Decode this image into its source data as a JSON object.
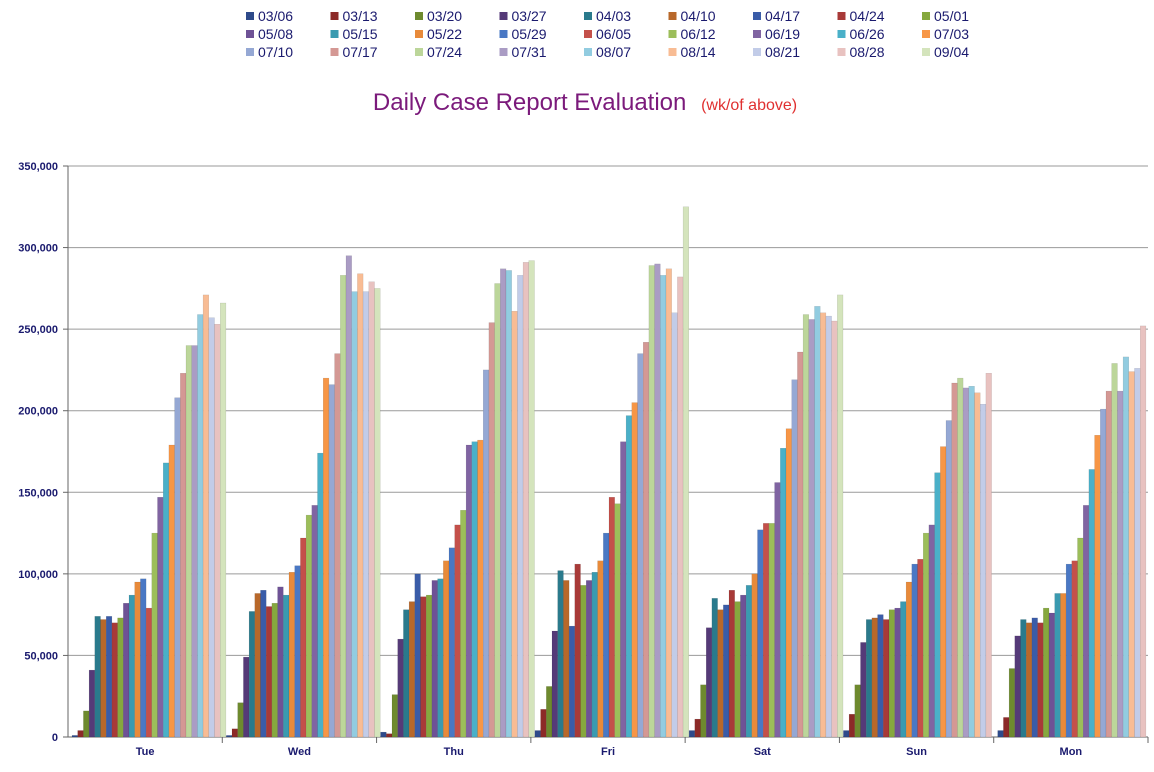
{
  "chart_data": {
    "type": "bar",
    "title": "Daily Case Report Evaluation",
    "subtitle": "(wk/of above)",
    "xlabel": "",
    "ylabel": "",
    "ylim": [
      0,
      350000
    ],
    "yticks": [
      "0",
      "50,000",
      "100,000",
      "150,000",
      "200,000",
      "250,000",
      "300,000",
      "350,000"
    ],
    "grid": true,
    "legend_position": "top",
    "colors": {
      "title": "#7b1a7b",
      "subtitle": "#e03030",
      "legend_text": "#1a1a6e",
      "tick_text": "#1a1a6e",
      "gridline": "#9a9a9a"
    },
    "categories": [
      "Tue",
      "Wed",
      "Thu",
      "Fri",
      "Sat",
      "Sun",
      "Mon"
    ],
    "series": [
      {
        "name": "03/06",
        "color": "#2e4a8a",
        "values": [
          1000,
          1000,
          3000,
          4000,
          4000,
          4000,
          4000
        ]
      },
      {
        "name": "03/13",
        "color": "#8c2a28",
        "values": [
          4000,
          5000,
          2000,
          17000,
          11000,
          14000,
          12000
        ]
      },
      {
        "name": "03/20",
        "color": "#6e8a2e",
        "values": [
          16000,
          21000,
          26000,
          31000,
          32000,
          32000,
          42000
        ]
      },
      {
        "name": "03/27",
        "color": "#553a78",
        "values": [
          41000,
          49000,
          60000,
          65000,
          67000,
          58000,
          62000
        ]
      },
      {
        "name": "04/03",
        "color": "#2a7a8c",
        "values": [
          74000,
          77000,
          78000,
          102000,
          85000,
          72000,
          72000
        ]
      },
      {
        "name": "04/10",
        "color": "#b8682a",
        "values": [
          72000,
          88000,
          83000,
          96000,
          78000,
          73000,
          70000
        ]
      },
      {
        "name": "04/17",
        "color": "#3a5ca8",
        "values": [
          74000,
          90000,
          100000,
          68000,
          81000,
          75000,
          73000
        ]
      },
      {
        "name": "04/24",
        "color": "#a83a38",
        "values": [
          70000,
          80000,
          86000,
          106000,
          90000,
          72000,
          70000
        ]
      },
      {
        "name": "05/01",
        "color": "#86a83e",
        "values": [
          73000,
          82000,
          87000,
          93000,
          83000,
          78000,
          79000
        ]
      },
      {
        "name": "05/08",
        "color": "#6e5296",
        "values": [
          82000,
          92000,
          96000,
          96000,
          87000,
          79000,
          76000
        ]
      },
      {
        "name": "05/15",
        "color": "#3a9ab0",
        "values": [
          87000,
          87000,
          97000,
          101000,
          93000,
          83000,
          88000
        ]
      },
      {
        "name": "05/22",
        "color": "#e88a3a",
        "values": [
          95000,
          101000,
          108000,
          108000,
          100000,
          95000,
          88000
        ]
      },
      {
        "name": "05/29",
        "color": "#4a78c4",
        "values": [
          97000,
          105000,
          116000,
          125000,
          127000,
          106000,
          106000
        ]
      },
      {
        "name": "06/05",
        "color": "#c4504a",
        "values": [
          79000,
          122000,
          130000,
          147000,
          131000,
          109000,
          108000
        ]
      },
      {
        "name": "06/12",
        "color": "#9cbe5a",
        "values": [
          125000,
          136000,
          139000,
          143000,
          131000,
          125000,
          122000
        ]
      },
      {
        "name": "06/19",
        "color": "#8064a2",
        "values": [
          147000,
          142000,
          179000,
          181000,
          156000,
          130000,
          142000
        ]
      },
      {
        "name": "06/26",
        "color": "#4ab0c8",
        "values": [
          168000,
          174000,
          181000,
          197000,
          177000,
          162000,
          164000
        ]
      },
      {
        "name": "07/03",
        "color": "#f79646",
        "values": [
          179000,
          220000,
          182000,
          205000,
          189000,
          178000,
          185000
        ]
      },
      {
        "name": "07/10",
        "color": "#95a8d4",
        "values": [
          208000,
          216000,
          225000,
          235000,
          219000,
          194000,
          201000
        ]
      },
      {
        "name": "07/17",
        "color": "#d49894",
        "values": [
          223000,
          235000,
          254000,
          242000,
          236000,
          217000,
          212000
        ]
      },
      {
        "name": "07/24",
        "color": "#bcd69a",
        "values": [
          240000,
          283000,
          278000,
          289000,
          259000,
          220000,
          229000
        ]
      },
      {
        "name": "07/31",
        "color": "#aa9cc4",
        "values": [
          240000,
          295000,
          287000,
          290000,
          256000,
          214000,
          212000
        ]
      },
      {
        "name": "08/07",
        "color": "#92cce0",
        "values": [
          259000,
          273000,
          286000,
          283000,
          264000,
          215000,
          233000
        ]
      },
      {
        "name": "08/14",
        "color": "#f8bc94",
        "values": [
          271000,
          284000,
          261000,
          287000,
          260000,
          211000,
          224000
        ]
      },
      {
        "name": "08/21",
        "color": "#c2cce8",
        "values": [
          257000,
          273000,
          283000,
          260000,
          258000,
          204000,
          226000
        ]
      },
      {
        "name": "08/28",
        "color": "#e8c2c0",
        "values": [
          253000,
          279000,
          291000,
          282000,
          255000,
          223000,
          252000
        ]
      },
      {
        "name": "09/04",
        "color": "#d4e4bc",
        "values": [
          266000,
          275000,
          292000,
          325000,
          271000,
          null,
          null
        ]
      }
    ]
  }
}
